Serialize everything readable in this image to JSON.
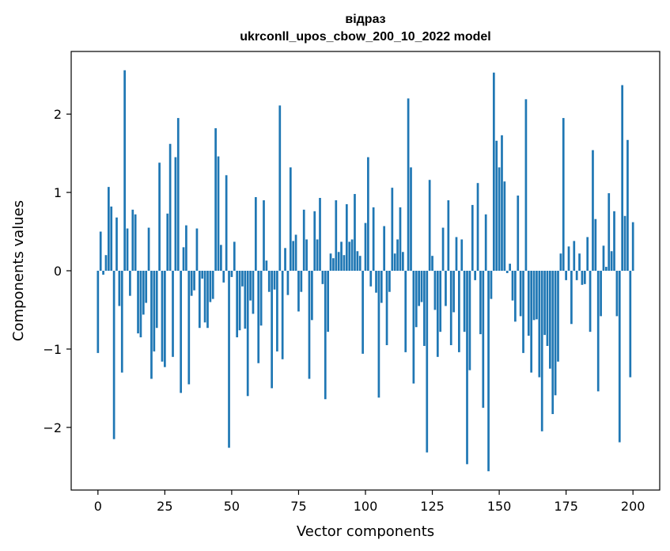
{
  "chart_data": {
    "type": "bar",
    "title_line1": "відраз",
    "title_line2": "ukrconll_upos_cbow_200_10_2022 model",
    "xlabel": "Vector components",
    "ylabel": "Components values",
    "xlim": [
      -10,
      210
    ],
    "ylim": [
      -2.8,
      2.8
    ],
    "xticks": [
      0,
      25,
      50,
      75,
      100,
      125,
      150,
      175,
      200
    ],
    "yticks": [
      -2,
      -1,
      0,
      1,
      2
    ],
    "ytick_labels": [
      "−2",
      "−1",
      "0",
      "1",
      "2"
    ],
    "bar_color": "#1f77b4",
    "values": [
      -1.05,
      0.5,
      -0.05,
      0.2,
      1.07,
      0.82,
      -2.15,
      0.68,
      -0.45,
      -1.3,
      2.56,
      0.54,
      -0.32,
      0.78,
      0.72,
      -0.8,
      -0.85,
      -0.56,
      -0.41,
      0.55,
      -1.38,
      -1.03,
      -0.73,
      1.38,
      -1.16,
      -1.23,
      0.73,
      1.62,
      -1.1,
      1.45,
      1.95,
      -1.56,
      0.3,
      0.58,
      -1.45,
      -0.32,
      -0.25,
      0.54,
      -0.73,
      -0.1,
      -0.66,
      -0.73,
      -0.4,
      -0.36,
      1.82,
      1.46,
      0.33,
      -0.15,
      1.22,
      -2.26,
      -0.08,
      0.37,
      -0.85,
      -0.76,
      -0.2,
      -0.74,
      -1.6,
      -0.38,
      -0.55,
      0.94,
      -1.18,
      -0.7,
      0.9,
      0.13,
      -0.27,
      -1.5,
      -0.24,
      -1.03,
      2.11,
      -1.13,
      0.29,
      -0.31,
      1.32,
      0.38,
      0.46,
      -0.52,
      -0.27,
      0.78,
      0.4,
      -1.38,
      -0.63,
      0.76,
      0.4,
      0.93,
      -0.17,
      -1.64,
      -0.78,
      0.22,
      0.16,
      0.9,
      0.24,
      0.37,
      0.2,
      0.85,
      0.37,
      0.4,
      0.98,
      0.25,
      0.19,
      -1.06,
      0.61,
      1.45,
      -0.2,
      0.81,
      -0.28,
      -1.62,
      -0.41,
      0.57,
      -0.95,
      -0.27,
      1.06,
      0.22,
      0.4,
      0.81,
      0.24,
      -1.04,
      2.2,
      1.32,
      -1.44,
      -0.72,
      -0.45,
      -0.4,
      -0.96,
      -2.32,
      1.16,
      0.19,
      -0.5,
      -1.1,
      -0.78,
      0.55,
      -0.45,
      0.9,
      -0.95,
      -0.53,
      0.43,
      -1.04,
      0.4,
      -0.78,
      -2.47,
      -1.27,
      0.84,
      -0.12,
      1.12,
      -0.81,
      -1.75,
      0.72,
      -2.56,
      -0.36,
      2.53,
      1.66,
      1.32,
      1.73,
      1.14,
      -0.03,
      0.09,
      -0.38,
      -0.65,
      0.96,
      -0.58,
      -1.05,
      2.19,
      -0.83,
      -1.3,
      -0.63,
      -0.62,
      -1.36,
      -2.05,
      -0.82,
      -0.96,
      -1.25,
      -1.83,
      -1.59,
      -1.16,
      0.22,
      1.95,
      -0.12,
      0.31,
      -0.68,
      0.38,
      -0.12,
      0.22,
      -0.18,
      -0.17,
      0.43,
      -0.78,
      1.54,
      0.66,
      -1.54,
      -0.58,
      0.32,
      0.05,
      0.99,
      0.25,
      0.76,
      -0.58,
      -2.19,
      2.37,
      0.7,
      1.67,
      -1.36,
      0.62
    ]
  }
}
